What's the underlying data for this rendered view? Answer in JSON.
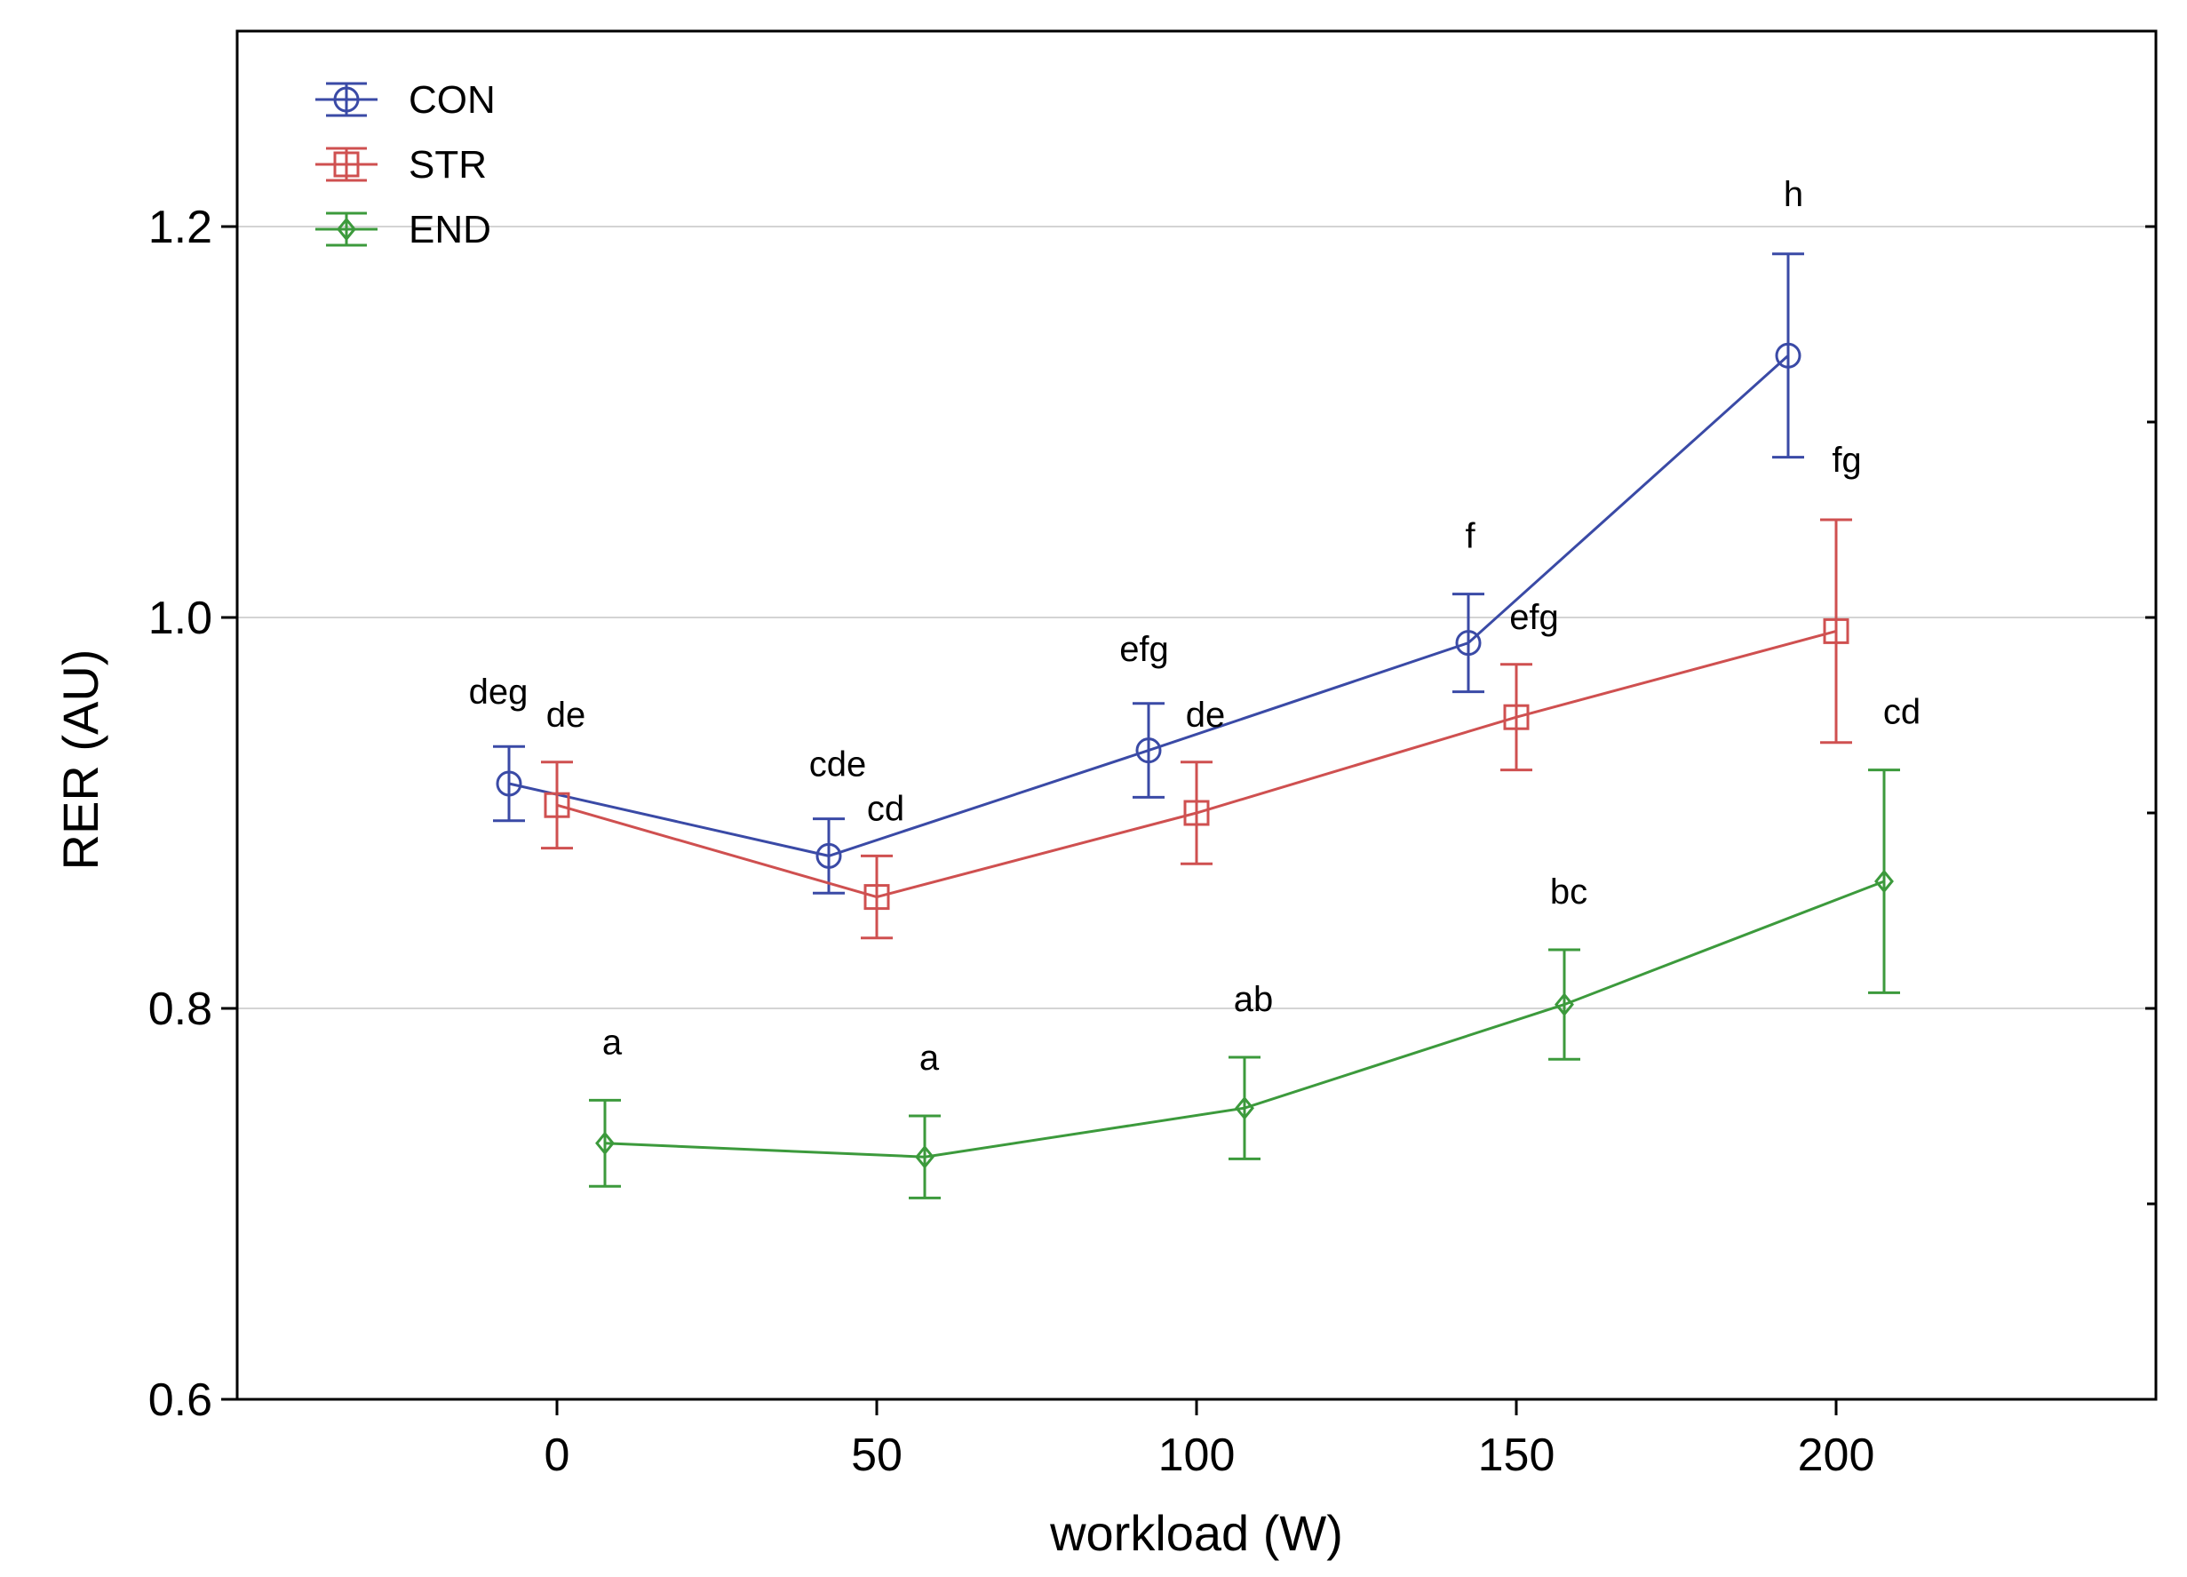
{
  "chart_data": {
    "type": "line",
    "title": "",
    "xlabel": "workload (W)",
    "ylabel": "RER (AU)",
    "xlim": [
      -50,
      250
    ],
    "ylim": [
      0.6,
      1.3
    ],
    "xticks": [
      0,
      50,
      100,
      150,
      200
    ],
    "xtick_labels": [
      "0",
      "50",
      "100",
      "150",
      "200"
    ],
    "yticks": [
      0.6,
      0.8,
      1.0,
      1.2
    ],
    "ytick_labels": [
      "0.6",
      "0.8",
      "1.0",
      "1.2"
    ],
    "grid": "horizontal major",
    "legend_position": "top-left",
    "series": [
      {
        "name": "CON",
        "color": "#3a4aa6",
        "marker": "circle",
        "x": [
          -7.5,
          42.5,
          92.5,
          142.5,
          192.5
        ],
        "y": [
          0.915,
          0.878,
          0.932,
          0.987,
          1.134
        ],
        "err": [
          0.019,
          0.019,
          0.024,
          0.025,
          0.052
        ],
        "labels": [
          "deg",
          "cde",
          "efg",
          "f",
          "h"
        ]
      },
      {
        "name": "STR",
        "color": "#cf5050",
        "marker": "square",
        "x": [
          0,
          50,
          100,
          150,
          200
        ],
        "y": [
          0.904,
          0.857,
          0.9,
          0.949,
          0.993
        ],
        "err": [
          0.022,
          0.021,
          0.026,
          0.027,
          0.057
        ],
        "labels": [
          "de",
          "cd",
          "de",
          "efg",
          "fg"
        ]
      },
      {
        "name": "END",
        "color": "#3c9a3c",
        "marker": "diamond",
        "x": [
          7.5,
          57.5,
          107.5,
          157.5,
          207.5
        ],
        "y": [
          0.731,
          0.724,
          0.749,
          0.802,
          0.865
        ],
        "err": [
          0.022,
          0.021,
          0.026,
          0.028,
          0.057
        ],
        "labels": [
          "a",
          "a",
          "ab",
          "bc",
          "cd"
        ]
      }
    ]
  }
}
